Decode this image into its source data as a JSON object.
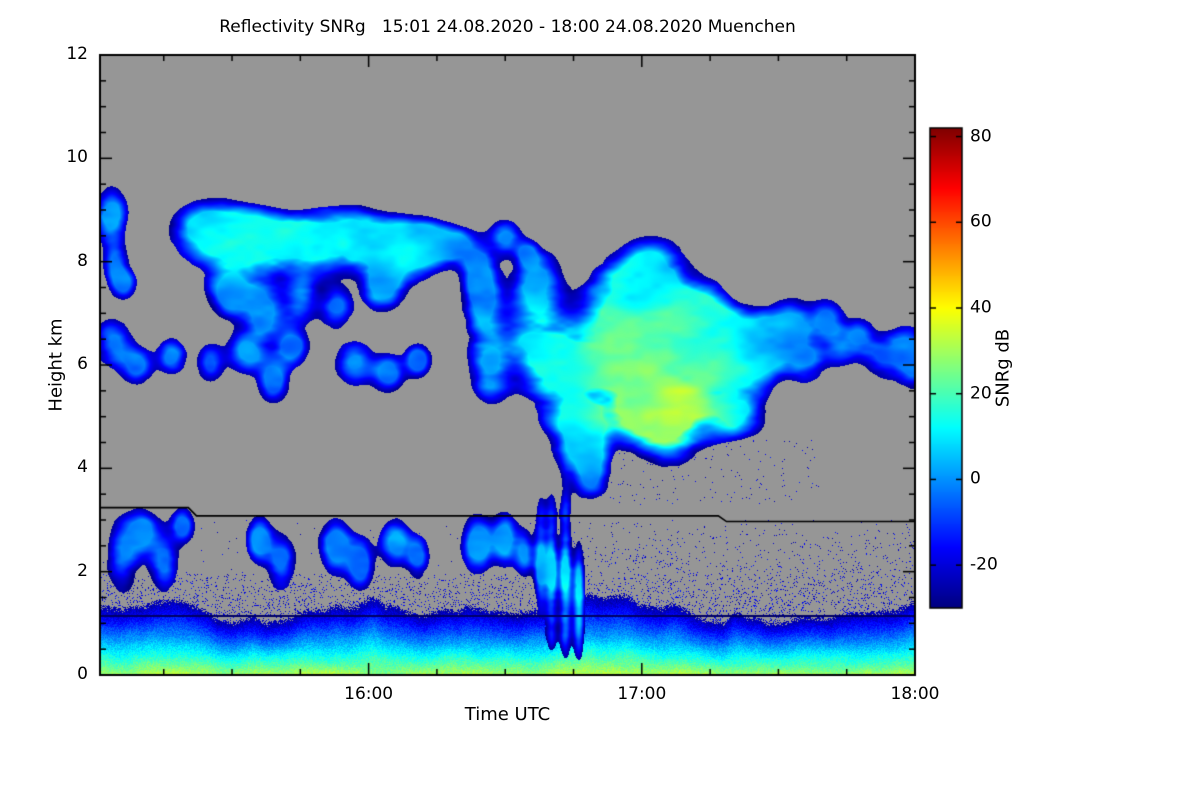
{
  "chart_data": {
    "type": "heatmap",
    "title": "Reflectivity SNRg   15:01 24.08.2020 - 18:00 24.08.2020 Muenchen",
    "xlabel": "Time UTC",
    "ylabel": "Height km",
    "x_axis": {
      "range_hours": [
        15.0167,
        18.0
      ],
      "major_ticks": [
        {
          "value": 16,
          "label": "16:00"
        },
        {
          "value": 17,
          "label": "17:00"
        },
        {
          "value": 18,
          "label": "18:00"
        }
      ],
      "minor_tick_step_hours": 0.25
    },
    "y_axis": {
      "range_km": [
        0,
        12
      ],
      "major_ticks": [
        {
          "value": 0,
          "label": "0"
        },
        {
          "value": 2,
          "label": "2"
        },
        {
          "value": 4,
          "label": "4"
        },
        {
          "value": 6,
          "label": "6"
        },
        {
          "value": 8,
          "label": "8"
        },
        {
          "value": 10,
          "label": "10"
        },
        {
          "value": 12,
          "label": "12"
        }
      ],
      "minor_tick_step_km": 0.5
    },
    "colorbar": {
      "label": "SNRg dB",
      "value_range": [
        -30,
        82
      ],
      "ticks": [
        {
          "value": 80,
          "label": "80"
        },
        {
          "value": 60,
          "label": "60"
        },
        {
          "value": 40,
          "label": "40"
        },
        {
          "value": 20,
          "label": "20"
        },
        {
          "value": 0,
          "label": "0"
        },
        {
          "value": -20,
          "label": "-20"
        }
      ],
      "colormap": "jet"
    },
    "colors": {
      "no_signal_background": "#969696",
      "frame": "#000000",
      "page": "#ffffff",
      "range_limit_line": "#000000",
      "artifact_line": "#000066"
    },
    "range_limit_line_km": [
      [
        15.0167,
        3.24
      ],
      [
        15.34,
        3.24
      ],
      [
        15.37,
        3.08
      ],
      [
        17.28,
        3.08
      ],
      [
        17.31,
        2.97
      ],
      [
        18.0,
        2.97
      ]
    ],
    "artifact_line_height_km": 1.15,
    "boundary_layer": {
      "surface_snr_db": 30,
      "mean_top_km": 1.2,
      "speckle_top_km": 3.0
    },
    "cloud_blobs": {
      "format": [
        "time_hours",
        "height_km",
        "radius_time_hours",
        "radius_height_km",
        "peak_snr_db"
      ],
      "values": [
        [
          15.42,
          8.6,
          0.12,
          0.45,
          5
        ],
        [
          15.55,
          8.3,
          0.15,
          0.55,
          8
        ],
        [
          15.75,
          8.35,
          0.18,
          0.5,
          10
        ],
        [
          15.95,
          8.45,
          0.15,
          0.45,
          8
        ],
        [
          16.1,
          8.15,
          0.12,
          0.5,
          6
        ],
        [
          16.22,
          8.35,
          0.08,
          0.35,
          0
        ],
        [
          16.32,
          8.3,
          0.06,
          0.3,
          -4
        ],
        [
          15.5,
          7.4,
          0.07,
          0.45,
          -4
        ],
        [
          15.62,
          7.0,
          0.06,
          0.5,
          -6
        ],
        [
          15.75,
          7.3,
          0.06,
          0.4,
          -2
        ],
        [
          15.88,
          7.1,
          0.05,
          0.35,
          -8
        ],
        [
          16.05,
          7.5,
          0.06,
          0.4,
          -4
        ],
        [
          15.06,
          8.9,
          0.05,
          0.45,
          -4
        ],
        [
          15.07,
          8.0,
          0.04,
          0.3,
          -8
        ],
        [
          15.1,
          7.6,
          0.04,
          0.25,
          -10
        ],
        [
          16.5,
          8.45,
          0.05,
          0.3,
          -6
        ],
        [
          16.58,
          8.15,
          0.035,
          0.2,
          -10
        ],
        [
          15.07,
          6.4,
          0.06,
          0.4,
          -6
        ],
        [
          15.15,
          6.0,
          0.05,
          0.3,
          -8
        ],
        [
          15.28,
          6.2,
          0.045,
          0.3,
          -8
        ],
        [
          15.42,
          6.05,
          0.04,
          0.3,
          -10
        ],
        [
          15.55,
          6.25,
          0.06,
          0.35,
          -5
        ],
        [
          15.65,
          5.7,
          0.045,
          0.35,
          -8
        ],
        [
          15.72,
          6.35,
          0.05,
          0.3,
          -6
        ],
        [
          15.95,
          6.05,
          0.06,
          0.35,
          -5
        ],
        [
          16.07,
          5.85,
          0.05,
          0.3,
          -8
        ],
        [
          16.18,
          6.1,
          0.04,
          0.28,
          -9
        ],
        [
          16.4,
          7.9,
          0.05,
          0.4,
          -5
        ],
        [
          16.42,
          7.0,
          0.06,
          0.9,
          -3
        ],
        [
          16.45,
          5.95,
          0.06,
          0.55,
          0
        ],
        [
          16.6,
          6.5,
          0.1,
          0.8,
          5
        ],
        [
          16.62,
          7.7,
          0.07,
          0.5,
          -2
        ],
        [
          16.72,
          5.8,
          0.1,
          0.9,
          10
        ],
        [
          16.78,
          4.6,
          0.07,
          0.7,
          3
        ],
        [
          16.82,
          4.0,
          0.05,
          0.4,
          -5
        ],
        [
          16.95,
          7.3,
          0.13,
          0.75,
          8
        ],
        [
          17.0,
          5.8,
          0.18,
          1.0,
          22
        ],
        [
          17.1,
          5.1,
          0.13,
          0.75,
          30
        ],
        [
          17.08,
          6.3,
          0.15,
          0.8,
          20
        ],
        [
          17.05,
          7.85,
          0.1,
          0.45,
          2
        ],
        [
          17.22,
          6.9,
          0.1,
          0.6,
          8
        ],
        [
          17.3,
          6.2,
          0.11,
          0.7,
          10
        ],
        [
          17.35,
          5.15,
          0.09,
          0.5,
          6
        ],
        [
          17.45,
          6.4,
          0.09,
          0.6,
          0
        ],
        [
          17.55,
          6.7,
          0.07,
          0.45,
          -4
        ],
        [
          17.6,
          6.1,
          0.06,
          0.4,
          -6
        ],
        [
          17.68,
          6.9,
          0.05,
          0.3,
          -8
        ],
        [
          17.72,
          6.35,
          0.06,
          0.35,
          -6
        ],
        [
          17.8,
          6.55,
          0.05,
          0.3,
          -8
        ],
        [
          17.88,
          6.15,
          0.06,
          0.35,
          -6
        ],
        [
          17.96,
          6.3,
          0.06,
          0.4,
          -5
        ],
        [
          18.0,
          6.05,
          0.05,
          0.4,
          -6
        ],
        [
          15.1,
          2.3,
          0.05,
          0.6,
          -6
        ],
        [
          15.17,
          2.75,
          0.05,
          0.4,
          -4
        ],
        [
          15.25,
          2.2,
          0.045,
          0.5,
          -7
        ],
        [
          15.32,
          2.9,
          0.035,
          0.3,
          -8
        ],
        [
          15.6,
          2.6,
          0.04,
          0.4,
          -6
        ],
        [
          15.68,
          2.15,
          0.045,
          0.45,
          -7
        ],
        [
          15.88,
          2.5,
          0.05,
          0.45,
          -5
        ],
        [
          15.97,
          2.15,
          0.04,
          0.4,
          -8
        ],
        [
          16.1,
          2.55,
          0.05,
          0.4,
          -6
        ],
        [
          16.18,
          2.25,
          0.035,
          0.35,
          -9
        ],
        [
          16.4,
          2.5,
          0.05,
          0.5,
          -4
        ],
        [
          16.5,
          2.6,
          0.04,
          0.45,
          -3
        ],
        [
          16.57,
          2.35,
          0.03,
          0.4,
          -7
        ],
        [
          16.63,
          2.2,
          0.022,
          1.0,
          0
        ],
        [
          16.67,
          2.0,
          0.02,
          1.2,
          6
        ],
        [
          16.72,
          1.9,
          0.022,
          1.3,
          8
        ],
        [
          16.77,
          1.5,
          0.02,
          1.0,
          4
        ]
      ]
    }
  }
}
